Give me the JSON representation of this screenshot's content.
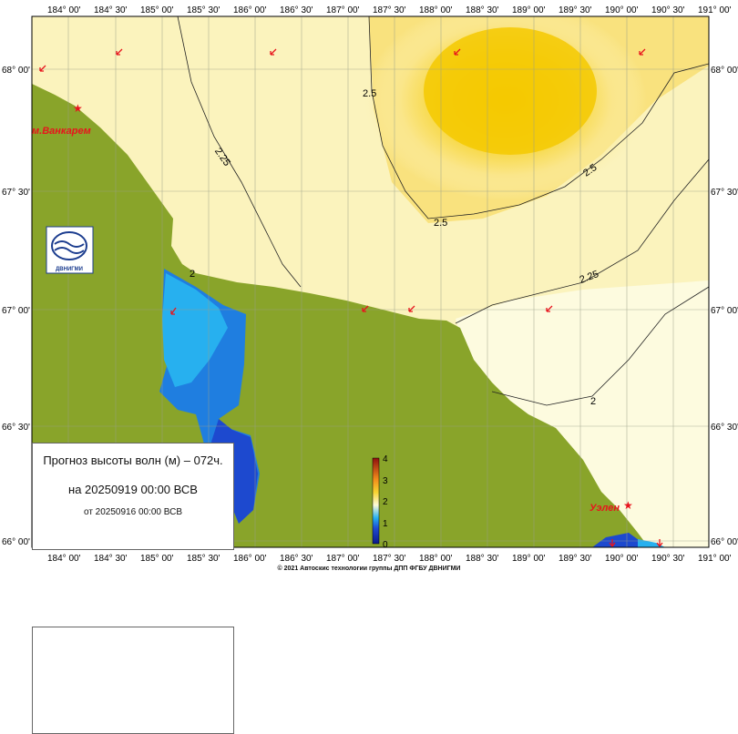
{
  "map": {
    "lon_labels": [
      "184° 00'",
      "184° 30'",
      "185° 00'",
      "185° 30'",
      "186° 00'",
      "186° 30'",
      "187° 00'",
      "187° 30'",
      "188° 00'",
      "188° 30'",
      "189° 00'",
      "189° 30'",
      "190° 00'",
      "190° 30'",
      "191° 00'"
    ],
    "lat_labels": [
      "68° 00'",
      "67° 30'",
      "67° 00'",
      "66° 30'",
      "66° 00'"
    ],
    "contour_labels": [
      "2.5",
      "2.25",
      "2.5",
      "2.5",
      "2.25",
      "2",
      "2"
    ],
    "places": [
      "м.Ванкарем",
      "Уэлен"
    ],
    "logo_text": "ДВНИГМИ",
    "colorbar": {
      "ticks": [
        "4",
        "3",
        "2",
        "1",
        "0"
      ],
      "min": 0,
      "max": 4
    },
    "colors": {
      "land": "#89a42a",
      "sea_low": "#fdfbd9",
      "sea_mid": "#fbf3b5",
      "sea_high": "#f9e17a",
      "sea_peak": "#f4c900",
      "lagoon_light": "#27b0ef",
      "lagoon_mid": "#1f7ee0",
      "lagoon_dark": "#1d49cf",
      "arrow": "#e8141d"
    }
  },
  "legend": {
    "title": "Прогноз высоты волн (м) – 072ч.",
    "valid": "на 20250919 00:00 ВСВ",
    "issued": "от 20250916 00:00 ВСВ"
  },
  "footer": {
    "copyright": "© 2021 Автоскис технологии группы ДПП ФГБУ ДВНИГМИ"
  }
}
